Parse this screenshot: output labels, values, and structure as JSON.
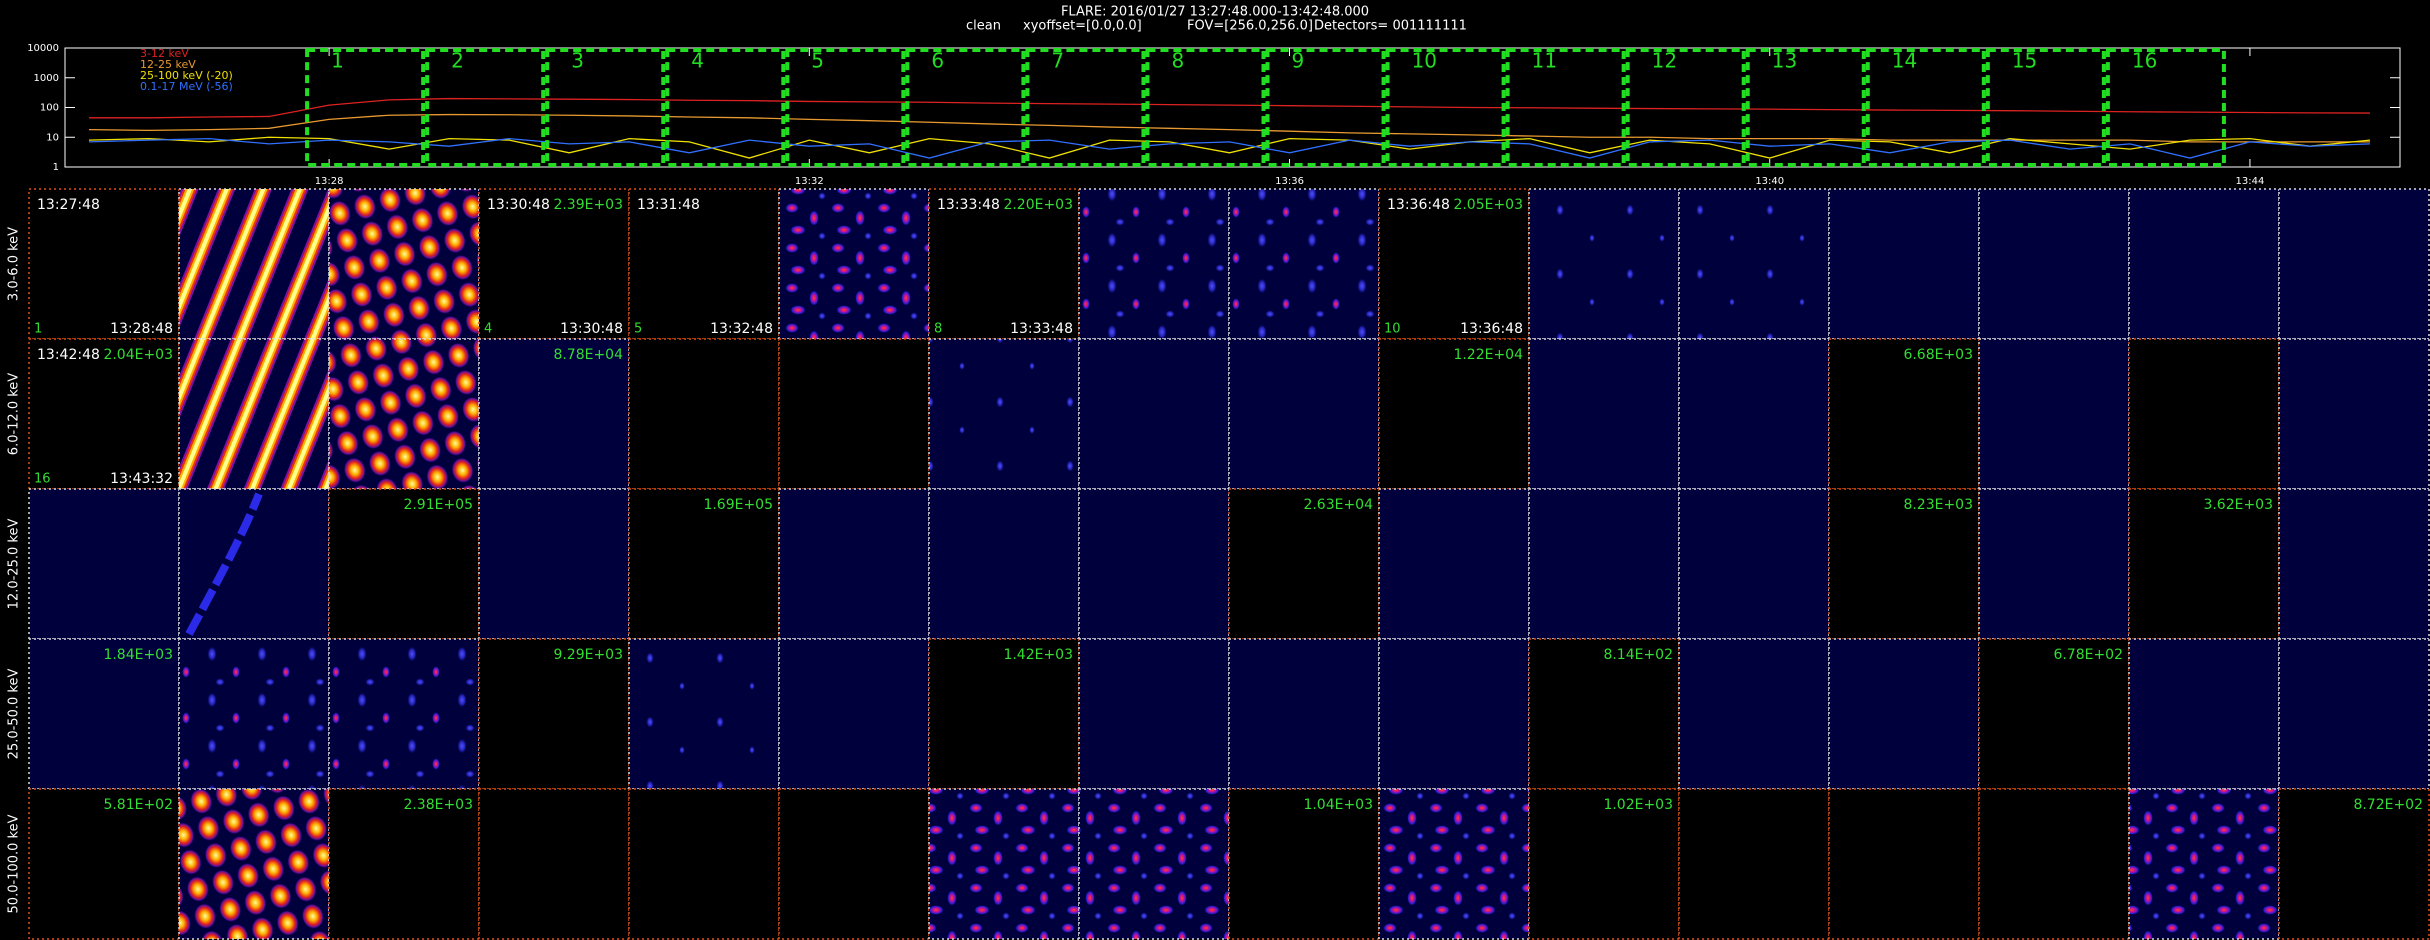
{
  "header": {
    "title": "FLARE: 2016/01/27 13:27:48.000-13:42:48.000",
    "params": [
      "clean",
      "xyoffset=[0.0,0.0]",
      "FOV=[256.0,256.0]",
      "Detectors= 001111111"
    ]
  },
  "chart_data": {
    "type": "line",
    "log_scale": true,
    "legend": "top-left",
    "x": [
      26,
      26.5,
      27,
      27.5,
      28,
      28.5,
      29,
      29.5,
      30,
      30.5,
      31,
      31.5,
      32,
      32.5,
      33,
      33.5,
      34,
      34.5,
      35,
      35.5,
      36,
      36.5,
      37,
      37.5,
      38,
      38.5,
      39,
      39.5,
      40,
      40.5,
      41,
      41.5,
      42,
      42.5,
      43,
      43.5,
      44,
      44.5,
      45
    ],
    "series": [
      {
        "name": "3-12 keV",
        "color": "#dd2222",
        "values": [
          45,
          45,
          48,
          50,
          120,
          180,
          200,
          195,
          190,
          185,
          175,
          170,
          160,
          155,
          150,
          140,
          135,
          130,
          125,
          120,
          115,
          110,
          105,
          100,
          98,
          95,
          92,
          90,
          88,
          85,
          82,
          80,
          78,
          75,
          72,
          70,
          68,
          66,
          65
        ]
      },
      {
        "name": "12-25 keV",
        "color": "#e89a30",
        "values": [
          18,
          17,
          18,
          20,
          40,
          55,
          58,
          57,
          55,
          52,
          48,
          45,
          40,
          36,
          32,
          28,
          25,
          22,
          20,
          18,
          16,
          14,
          13,
          12,
          11,
          10,
          10,
          9,
          9,
          9,
          8,
          8,
          8,
          8,
          8,
          7,
          7,
          7,
          7
        ]
      },
      {
        "name": "25-100 keV (-20)",
        "color": "#f0e000",
        "values": [
          8,
          9,
          7,
          10,
          9,
          4,
          9,
          8,
          3,
          9,
          7,
          2,
          8,
          3,
          9,
          6,
          2,
          8,
          7,
          3,
          9,
          8,
          4,
          7,
          9,
          3,
          8,
          6,
          2,
          8,
          7,
          3,
          9,
          6,
          4,
          8,
          9,
          5,
          8
        ]
      },
      {
        "name": "0.1-17 MeV (-56)",
        "color": "#3070ff",
        "values": [
          7,
          8,
          9,
          6,
          8,
          7,
          5,
          9,
          6,
          7,
          3,
          8,
          5,
          6,
          2,
          7,
          8,
          4,
          6,
          7,
          3,
          8,
          5,
          7,
          6,
          2,
          7,
          8,
          5,
          6,
          3,
          7,
          8,
          4,
          6,
          2,
          7,
          5,
          6
        ]
      }
    ],
    "xlim": [
      25.8,
      45.25
    ],
    "xticks": [
      {
        "value": 28,
        "label": "13:28"
      },
      {
        "value": 32,
        "label": "13:32"
      },
      {
        "value": 36,
        "label": "13:36"
      },
      {
        "value": 40,
        "label": "13:40"
      },
      {
        "value": 44,
        "label": "13:44"
      }
    ],
    "ylim": [
      1,
      10000
    ],
    "yticks": [
      1,
      10,
      100,
      1000,
      10000
    ],
    "interval_color": "#22dd22",
    "intervals": [
      {
        "label": "1",
        "start": 27.8,
        "end": 28.8
      },
      {
        "label": "2",
        "start": 28.8,
        "end": 29.8
      },
      {
        "label": "3",
        "start": 29.8,
        "end": 30.8
      },
      {
        "label": "4",
        "start": 30.8,
        "end": 31.8
      },
      {
        "label": "5",
        "start": 31.8,
        "end": 32.8
      },
      {
        "label": "6",
        "start": 32.8,
        "end": 33.8
      },
      {
        "label": "7",
        "start": 33.8,
        "end": 34.8
      },
      {
        "label": "8",
        "start": 34.8,
        "end": 35.8
      },
      {
        "label": "9",
        "start": 35.8,
        "end": 36.8
      },
      {
        "label": "10",
        "start": 36.8,
        "end": 37.8
      },
      {
        "label": "11",
        "start": 37.8,
        "end": 38.8
      },
      {
        "label": "12",
        "start": 38.8,
        "end": 39.8
      },
      {
        "label": "13",
        "start": 39.8,
        "end": 40.8
      },
      {
        "label": "14",
        "start": 40.8,
        "end": 41.8
      },
      {
        "label": "15",
        "start": 41.8,
        "end": 42.8
      },
      {
        "label": "16",
        "start": 42.8,
        "end": 43.8
      }
    ]
  },
  "panels": {
    "rows": [
      {
        "label": "3.0-6.0 keV",
        "cells": [
          {
            "bg": "black",
            "tl": "13:27:48",
            "br": "13:28:48",
            "bl": "1"
          },
          {
            "bg": "stripes"
          },
          {
            "bg": "dots"
          },
          {
            "bg": "black",
            "tl": "13:30:48",
            "tr": "2.39E+03",
            "br": "13:30:48",
            "bl": "4"
          },
          {
            "bg": "black",
            "tl": "13:31:48",
            "br": "13:32:48",
            "bl": "5"
          },
          {
            "bg": "redblobs"
          },
          {
            "bg": "black",
            "tl": "13:33:48",
            "tr": "2.20E+03",
            "br": "13:33:48",
            "bl": "8"
          },
          {
            "bg": "blueblobs"
          },
          {
            "bg": "blueblobs"
          },
          {
            "bg": "black",
            "tl": "13:36:48",
            "tr": "2.05E+03",
            "br": "13:36:48",
            "bl": "10"
          },
          {
            "bg": "speckle"
          },
          {
            "bg": "speckle"
          },
          {
            "bg": "navy"
          },
          {
            "bg": "navy"
          },
          {
            "bg": "navy"
          },
          {
            "bg": "navy"
          }
        ]
      },
      {
        "label": "6.0-12.0 keV",
        "cells": [
          {
            "bg": "black",
            "tl": "13:42:48",
            "tr": "2.04E+03",
            "br": "13:43:32",
            "bl": "16"
          },
          {
            "bg": "stripes"
          },
          {
            "bg": "dots"
          },
          {
            "bg": "navy",
            "tr": "8.78E+04"
          },
          {
            "bg": "black"
          },
          {
            "bg": "black"
          },
          {
            "bg": "speckle"
          },
          {
            "bg": "navy"
          },
          {
            "bg": "navy"
          },
          {
            "bg": "black",
            "tr": "1.22E+04"
          },
          {
            "bg": "navy"
          },
          {
            "bg": "navy"
          },
          {
            "bg": "black",
            "tr": "6.68E+03"
          },
          {
            "bg": "navy"
          },
          {
            "bg": "black"
          },
          {
            "bg": "navy"
          }
        ]
      },
      {
        "label": "12.0-25.0 keV",
        "cells": [
          {
            "bg": "navy"
          },
          {
            "bg": "streak"
          },
          {
            "bg": "black",
            "tr": "2.91E+05"
          },
          {
            "bg": "navy"
          },
          {
            "bg": "black",
            "tr": "1.69E+05"
          },
          {
            "bg": "navy"
          },
          {
            "bg": "navy"
          },
          {
            "bg": "navy"
          },
          {
            "bg": "black",
            "tr": "2.63E+04"
          },
          {
            "bg": "navy"
          },
          {
            "bg": "navy"
          },
          {
            "bg": "navy"
          },
          {
            "bg": "black",
            "tr": "8.23E+03"
          },
          {
            "bg": "navy"
          },
          {
            "bg": "black",
            "tr": "3.62E+03"
          },
          {
            "bg": "navy"
          }
        ]
      },
      {
        "label": "25.0-50.0 keV",
        "cells": [
          {
            "bg": "navy",
            "tr": "1.84E+03"
          },
          {
            "bg": "blueblobs"
          },
          {
            "bg": "blueblobs"
          },
          {
            "bg": "black",
            "tr": "9.29E+03"
          },
          {
            "bg": "speckle"
          },
          {
            "bg": "navy"
          },
          {
            "bg": "black",
            "tr": "1.42E+03"
          },
          {
            "bg": "navy"
          },
          {
            "bg": "navy"
          },
          {
            "bg": "navy"
          },
          {
            "bg": "black",
            "tr": "8.14E+02"
          },
          {
            "bg": "navy"
          },
          {
            "bg": "navy"
          },
          {
            "bg": "black",
            "tr": "6.78E+02"
          },
          {
            "bg": "navy"
          },
          {
            "bg": "navy"
          }
        ]
      },
      {
        "label": "50.0-100.0 keV",
        "cells": [
          {
            "bg": "black",
            "tr": "5.81E+02"
          },
          {
            "bg": "dots"
          },
          {
            "bg": "black",
            "tr": "2.38E+03"
          },
          {
            "bg": "black"
          },
          {
            "bg": "black"
          },
          {
            "bg": "black"
          },
          {
            "bg": "redblobs"
          },
          {
            "bg": "redblobs"
          },
          {
            "bg": "black",
            "tr": "1.04E+03"
          },
          {
            "bg": "redblobs"
          },
          {
            "bg": "black",
            "tr": "1.02E+03"
          },
          {
            "bg": "black"
          },
          {
            "bg": "black"
          },
          {
            "bg": "black"
          },
          {
            "bg": "redblobs"
          },
          {
            "bg": "black",
            "tr": "8.72E+02"
          }
        ]
      }
    ]
  }
}
